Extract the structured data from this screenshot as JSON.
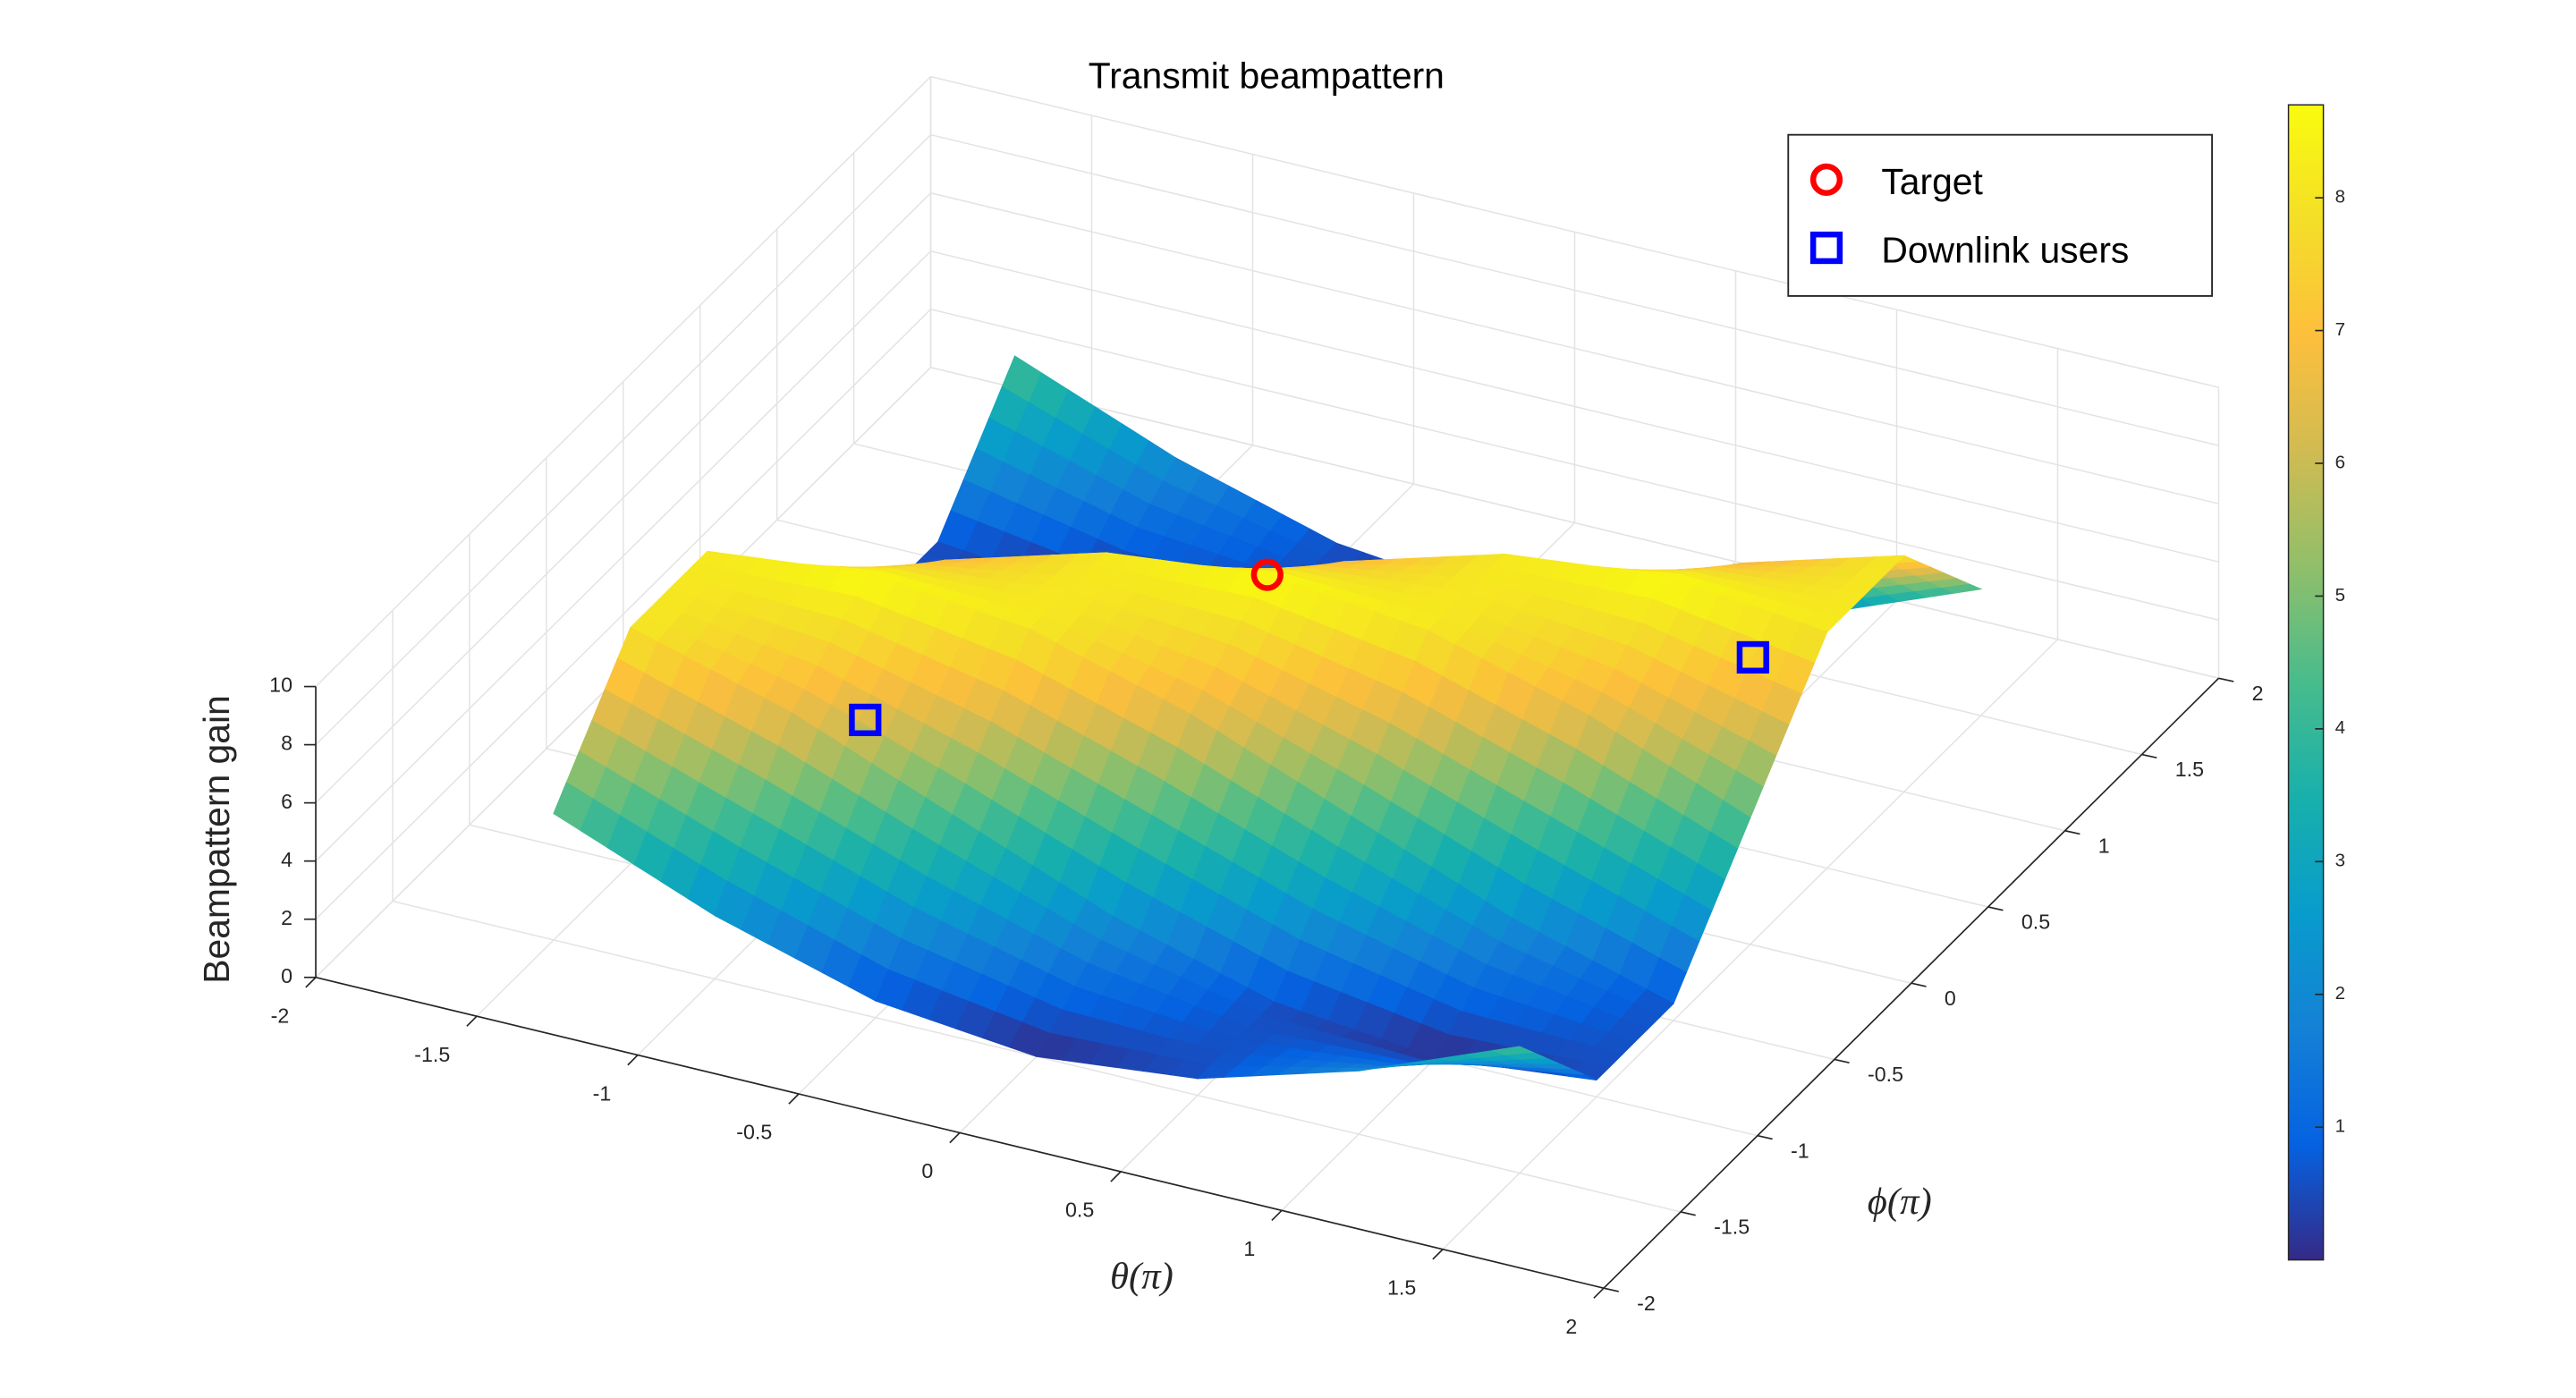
{
  "chart_data": {
    "type": "surface",
    "title": "Transmit beampattern",
    "x_label": "θ(π)",
    "y_label": "ϕ(π)",
    "z_label": "Beampattern gain",
    "x": [
      -1.5,
      -1,
      -0.5,
      0,
      0.5,
      1,
      1.5
    ],
    "y": [
      -1.5,
      -1,
      -0.5,
      0,
      0.5,
      1,
      1.5
    ],
    "z": [
      [
        4.35,
        8.12,
        8.12,
        4.35,
        0.58,
        0.58,
        4.35
      ],
      [
        2.18,
        6.53,
        8.7,
        6.53,
        2.18,
        0,
        2.18
      ],
      [
        0.58,
        4.35,
        8.12,
        8.12,
        4.35,
        0.58,
        0.58
      ],
      [
        0,
        2.18,
        6.53,
        8.7,
        6.53,
        2.18,
        0
      ],
      [
        0.58,
        0.58,
        4.35,
        8.12,
        8.12,
        4.35,
        0.58
      ],
      [
        2.18,
        0,
        2.18,
        6.53,
        8.7,
        6.53,
        2.18
      ],
      [
        4.35,
        0.58,
        0.58,
        4.35,
        8.12,
        8.12,
        4.35
      ]
    ],
    "xlim": [
      -2,
      2
    ],
    "ylim": [
      -2,
      2
    ],
    "zlim": [
      0,
      10
    ],
    "xticks": [
      -2,
      -1.5,
      -1,
      -0.5,
      0,
      0.5,
      1,
      1.5,
      2
    ],
    "yticks": [
      -2,
      -1.5,
      -1,
      -0.5,
      0,
      0.5,
      1,
      1.5,
      2
    ],
    "zticks": [
      0,
      2,
      4,
      6,
      8,
      10
    ],
    "clim": [
      0,
      8.7
    ],
    "cticks": [
      1,
      2,
      3,
      4,
      5,
      6,
      7,
      8
    ],
    "colormap": "parula",
    "grid": true,
    "legend": "upper right",
    "markers": [
      {
        "name": "Target",
        "color": "#ff0000",
        "shape": "circle",
        "x": [
          0
        ],
        "y": [
          0
        ],
        "z": [
          8.7
        ]
      },
      {
        "name": "Downlink users",
        "color": "#0000ff",
        "shape": "square",
        "x": [
          -0.69,
          1.37
        ],
        "y": [
          -1.17,
          0.29
        ],
        "z": [
          8,
          8
        ]
      }
    ]
  }
}
